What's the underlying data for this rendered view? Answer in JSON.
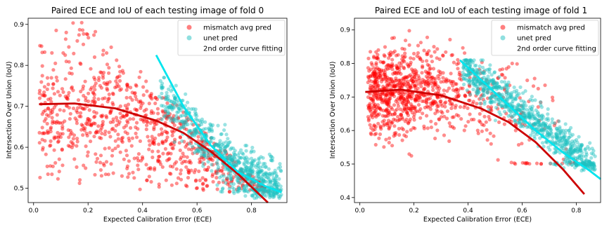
{
  "chart_data": [
    {
      "type": "scatter",
      "title": "Paired ECE and IoU of each testing image of fold 0",
      "xlabel": "Expected Calibration Error (ECE)",
      "ylabel": "Intersection Over Union (IoU)",
      "xlim": [
        -0.02,
        0.93
      ],
      "ylim": [
        0.465,
        0.915
      ],
      "xticks": [
        "0.0",
        "0.2",
        "0.4",
        "0.6",
        "0.8"
      ],
      "yticks": [
        "0.5",
        "0.6",
        "0.7",
        "0.8",
        "0.9"
      ],
      "legend_position": "top-right",
      "legend": [
        "mismatch avg pred",
        "unet pred",
        "2nd order curve fitting"
      ],
      "series": [
        {
          "name": "mismatch avg pred",
          "color": "#ff0000",
          "marker": "circle",
          "point_cloud": {
            "count": 850,
            "x_range": [
              0.02,
              0.86
            ],
            "y_range": [
              0.49,
              0.9
            ],
            "shape": "triangular, dense near x 0.1-0.35, y 0.6-0.8"
          }
        },
        {
          "name": "unet pred",
          "color": "#20c0c0",
          "marker": "circle",
          "point_cloud": {
            "count": 700,
            "x_range": [
              0.45,
              0.91
            ],
            "y_range": [
              0.47,
              0.77
            ],
            "shape": "descending band"
          }
        }
      ],
      "fit_lines": [
        {
          "name": "2nd order curve fitting",
          "color": "#cc0000",
          "x": [
            0.02,
            0.15,
            0.3,
            0.45,
            0.55,
            0.65,
            0.75,
            0.86
          ],
          "y": [
            0.705,
            0.707,
            0.695,
            0.665,
            0.635,
            0.59,
            0.535,
            0.465
          ]
        },
        {
          "name": "2nd order curve fitting",
          "color": "#00e5ee",
          "x": [
            0.45,
            0.55,
            0.65,
            0.75,
            0.85,
            0.91
          ],
          "y": [
            0.825,
            0.7,
            0.605,
            0.54,
            0.505,
            0.49
          ]
        }
      ]
    },
    {
      "type": "scatter",
      "title": "Paired ECE and IoU of each testing image of fold 1",
      "xlabel": "Expected Calibration Error (ECE)",
      "ylabel": "Intersection Over Union (IoU)",
      "xlim": [
        -0.02,
        0.89
      ],
      "ylim": [
        0.385,
        0.935
      ],
      "xticks": [
        "0.0",
        "0.2",
        "0.4",
        "0.6",
        "0.8"
      ],
      "yticks": [
        "0.4",
        "0.5",
        "0.6",
        "0.7",
        "0.8",
        "0.9"
      ],
      "legend_position": "top-right",
      "legend": [
        "mismatch avg pred",
        "unet pred",
        "2nd order curve fitting"
      ],
      "series": [
        {
          "name": "mismatch avg pred",
          "color": "#ff0000",
          "marker": "circle",
          "point_cloud": {
            "count": 950,
            "x_range": [
              0.02,
              0.8
            ],
            "y_range": [
              0.5,
              0.91
            ],
            "shape": "dense cluster near x 0.1-0.3, y 0.6-0.8"
          }
        },
        {
          "name": "unet pred",
          "color": "#20c0c0",
          "marker": "circle",
          "point_cloud": {
            "count": 800,
            "x_range": [
              0.37,
              0.87
            ],
            "y_range": [
              0.48,
              0.81
            ],
            "shape": "descending band"
          }
        }
      ],
      "fit_lines": [
        {
          "name": "2nd order curve fitting",
          "color": "#cc0000",
          "x": [
            0.02,
            0.15,
            0.3,
            0.45,
            0.55,
            0.65,
            0.75,
            0.83
          ],
          "y": [
            0.715,
            0.722,
            0.705,
            0.665,
            0.625,
            0.565,
            0.485,
            0.41
          ]
        },
        {
          "name": "2nd order curve fitting",
          "color": "#00e5ee",
          "x": [
            0.37,
            0.45,
            0.55,
            0.65,
            0.75,
            0.85,
            0.89
          ],
          "y": [
            0.81,
            0.75,
            0.675,
            0.6,
            0.535,
            0.48,
            0.455
          ]
        }
      ]
    }
  ]
}
